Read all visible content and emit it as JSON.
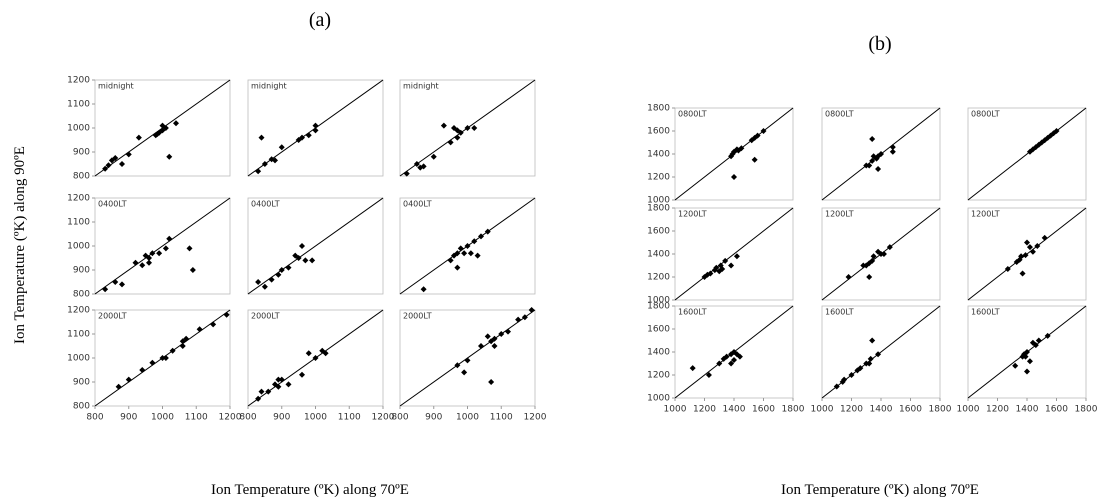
{
  "panels": [
    {
      "label": "(a)",
      "ylabel": "Ion Temperature (ºK) along 90ºE",
      "xlabel": "Ion Temperature (ºK) along 70ºE"
    },
    {
      "label": "(b)",
      "xlabel": "Ion Temperature (ºK) along 70ºE"
    }
  ],
  "chart_data": [
    {
      "type": "scatter",
      "label": "midnight",
      "color": "#000000",
      "identity_line": true,
      "xlim": [
        800,
        1200
      ],
      "ylim": [
        800,
        1200
      ],
      "yticks": [
        800,
        900,
        1000,
        1100,
        1200
      ],
      "x": [
        830,
        840,
        850,
        860,
        880,
        900,
        930,
        980,
        985,
        990,
        1000,
        1000,
        1010,
        1020,
        1040
      ],
      "values": [
        830,
        845,
        865,
        875,
        850,
        890,
        960,
        970,
        975,
        980,
        990,
        1010,
        1000,
        880,
        1020
      ]
    },
    {
      "type": "scatter",
      "label": "midnight",
      "color": "#000000",
      "identity_line": true,
      "xlim": [
        800,
        1200
      ],
      "ylim": [
        800,
        1200
      ],
      "x": [
        830,
        840,
        850,
        870,
        880,
        900,
        950,
        960,
        980,
        1000,
        1000
      ],
      "values": [
        820,
        960,
        850,
        870,
        865,
        920,
        950,
        960,
        970,
        990,
        1010
      ]
    },
    {
      "type": "scatter",
      "label": "midnight",
      "color": "#000000",
      "identity_line": true,
      "xlim": [
        800,
        1200
      ],
      "ylim": [
        800,
        1200
      ],
      "x": [
        820,
        850,
        860,
        870,
        900,
        930,
        950,
        960,
        970,
        970,
        980,
        1000,
        1020
      ],
      "values": [
        810,
        850,
        835,
        840,
        880,
        1010,
        940,
        1000,
        960,
        990,
        980,
        1000,
        1000
      ]
    },
    {
      "type": "scatter",
      "label": "0400LT",
      "color": "#000000",
      "identity_line": true,
      "xlim": [
        800,
        1200
      ],
      "ylim": [
        800,
        1200
      ],
      "yticks": [
        800,
        900,
        1000,
        1100,
        1200
      ],
      "x": [
        830,
        860,
        880,
        920,
        940,
        950,
        960,
        960,
        970,
        990,
        1010,
        1020,
        1080,
        1090
      ],
      "values": [
        820,
        850,
        840,
        930,
        920,
        960,
        950,
        930,
        970,
        970,
        990,
        1030,
        990,
        900
      ]
    },
    {
      "type": "scatter",
      "label": "0400LT",
      "color": "#000000",
      "identity_line": true,
      "xlim": [
        800,
        1200
      ],
      "ylim": [
        800,
        1200
      ],
      "x": [
        830,
        850,
        870,
        890,
        900,
        920,
        940,
        950,
        960,
        970,
        990
      ],
      "values": [
        850,
        830,
        860,
        880,
        900,
        910,
        960,
        950,
        1000,
        940,
        940
      ]
    },
    {
      "type": "scatter",
      "label": "0400LT",
      "color": "#000000",
      "identity_line": true,
      "xlim": [
        800,
        1200
      ],
      "ylim": [
        800,
        1200
      ],
      "x": [
        870,
        950,
        960,
        970,
        970,
        980,
        990,
        1000,
        1010,
        1020,
        1030,
        1040,
        1060
      ],
      "values": [
        820,
        940,
        960,
        970,
        910,
        990,
        970,
        1000,
        970,
        1020,
        960,
        1040,
        1060
      ]
    },
    {
      "type": "scatter",
      "label": "2000LT",
      "color": "#000000",
      "identity_line": true,
      "xlim": [
        800,
        1200
      ],
      "ylim": [
        800,
        1200
      ],
      "yticks": [
        800,
        900,
        1000,
        1100,
        1200
      ],
      "xticks": [
        800,
        900,
        1000,
        1100,
        1200
      ],
      "x": [
        870,
        900,
        940,
        970,
        1000,
        1010,
        1030,
        1060,
        1060,
        1070,
        1110,
        1150,
        1190
      ],
      "values": [
        880,
        910,
        950,
        980,
        1000,
        1000,
        1030,
        1050,
        1070,
        1080,
        1120,
        1140,
        1180
      ]
    },
    {
      "type": "scatter",
      "label": "2000LT",
      "color": "#000000",
      "identity_line": true,
      "xlim": [
        800,
        1200
      ],
      "ylim": [
        800,
        1200
      ],
      "xticks": [
        800,
        900,
        1000,
        1100,
        1200
      ],
      "x": [
        830,
        840,
        860,
        880,
        890,
        890,
        900,
        920,
        960,
        980,
        1000,
        1020,
        1030
      ],
      "values": [
        830,
        860,
        860,
        890,
        880,
        910,
        910,
        890,
        930,
        1020,
        1000,
        1030,
        1020
      ]
    },
    {
      "type": "scatter",
      "label": "2000LT",
      "color": "#000000",
      "identity_line": true,
      "xlim": [
        800,
        1200
      ],
      "ylim": [
        800,
        1200
      ],
      "xticks": [
        800,
        900,
        1000,
        1100,
        1200
      ],
      "x": [
        970,
        990,
        1000,
        1040,
        1060,
        1070,
        1070,
        1080,
        1080,
        1100,
        1120,
        1150,
        1170,
        1190
      ],
      "values": [
        970,
        940,
        990,
        1050,
        1090,
        1070,
        900,
        1050,
        1080,
        1100,
        1110,
        1160,
        1170,
        1200
      ]
    },
    {
      "type": "scatter",
      "label": "0800LT",
      "color": "#000000",
      "identity_line": true,
      "xlim": [
        1000,
        1800
      ],
      "ylim": [
        1000,
        1800
      ],
      "yticks": [
        1000,
        1200,
        1400,
        1600,
        1800
      ],
      "x": [
        1380,
        1390,
        1400,
        1400,
        1420,
        1430,
        1450,
        1520,
        1540,
        1540,
        1560,
        1600
      ],
      "values": [
        1380,
        1400,
        1420,
        1200,
        1440,
        1430,
        1450,
        1520,
        1540,
        1350,
        1560,
        1600
      ]
    },
    {
      "type": "scatter",
      "label": "0800LT",
      "color": "#000000",
      "identity_line": true,
      "xlim": [
        1000,
        1800
      ],
      "ylim": [
        1000,
        1800
      ],
      "x": [
        1300,
        1320,
        1340,
        1340,
        1350,
        1370,
        1380,
        1380,
        1400,
        1480,
        1480
      ],
      "values": [
        1300,
        1300,
        1340,
        1530,
        1380,
        1360,
        1380,
        1270,
        1400,
        1460,
        1420
      ]
    },
    {
      "type": "scatter",
      "label": "0800LT",
      "color": "#000000",
      "identity_line": true,
      "xlim": [
        1000,
        1800
      ],
      "ylim": [
        1000,
        1800
      ],
      "x": [
        1420,
        1440,
        1460,
        1480,
        1500,
        1520,
        1540,
        1560,
        1580,
        1600
      ],
      "values": [
        1420,
        1440,
        1460,
        1480,
        1500,
        1520,
        1540,
        1560,
        1580,
        1600
      ]
    },
    {
      "type": "scatter",
      "label": "1200LT",
      "color": "#000000",
      "identity_line": true,
      "xlim": [
        1000,
        1800
      ],
      "ylim": [
        1000,
        1800
      ],
      "yticks": [
        1000,
        1200,
        1400,
        1600,
        1800
      ],
      "x": [
        1200,
        1220,
        1240,
        1270,
        1280,
        1300,
        1310,
        1320,
        1340,
        1380,
        1420
      ],
      "values": [
        1200,
        1220,
        1230,
        1260,
        1280,
        1250,
        1300,
        1270,
        1340,
        1300,
        1380
      ]
    },
    {
      "type": "scatter",
      "label": "1200LT",
      "color": "#000000",
      "identity_line": true,
      "xlim": [
        1000,
        1800
      ],
      "ylim": [
        1000,
        1800
      ],
      "x": [
        1180,
        1280,
        1300,
        1320,
        1320,
        1340,
        1350,
        1380,
        1400,
        1420,
        1460
      ],
      "values": [
        1200,
        1300,
        1300,
        1320,
        1200,
        1340,
        1380,
        1420,
        1400,
        1400,
        1460
      ]
    },
    {
      "type": "scatter",
      "label": "1200LT",
      "color": "#000000",
      "identity_line": true,
      "xlim": [
        1000,
        1800
      ],
      "ylim": [
        1000,
        1800
      ],
      "x": [
        1270,
        1330,
        1350,
        1360,
        1370,
        1390,
        1400,
        1420,
        1440,
        1470,
        1520
      ],
      "values": [
        1270,
        1330,
        1350,
        1380,
        1230,
        1390,
        1500,
        1460,
        1420,
        1470,
        1540
      ]
    },
    {
      "type": "scatter",
      "label": "1600LT",
      "color": "#000000",
      "identity_line": true,
      "xlim": [
        1000,
        1800
      ],
      "ylim": [
        1000,
        1800
      ],
      "yticks": [
        1000,
        1200,
        1400,
        1600,
        1800
      ],
      "xticks": [
        1000,
        1200,
        1400,
        1600,
        1800
      ],
      "x": [
        1120,
        1230,
        1300,
        1330,
        1350,
        1380,
        1380,
        1400,
        1400,
        1420,
        1440
      ],
      "values": [
        1260,
        1200,
        1300,
        1340,
        1360,
        1380,
        1300,
        1330,
        1400,
        1380,
        1360
      ]
    },
    {
      "type": "scatter",
      "label": "1600LT",
      "color": "#000000",
      "identity_line": true,
      "xlim": [
        1000,
        1800
      ],
      "ylim": [
        1000,
        1800
      ],
      "xticks": [
        1000,
        1200,
        1400,
        1600,
        1800
      ],
      "x": [
        1100,
        1140,
        1150,
        1200,
        1240,
        1260,
        1300,
        1320,
        1330,
        1340,
        1380
      ],
      "values": [
        1100,
        1140,
        1160,
        1200,
        1240,
        1260,
        1300,
        1300,
        1340,
        1500,
        1380
      ]
    },
    {
      "type": "scatter",
      "label": "1600LT",
      "color": "#000000",
      "identity_line": true,
      "xlim": [
        1000,
        1800
      ],
      "ylim": [
        1000,
        1800
      ],
      "xticks": [
        1000,
        1200,
        1400,
        1600,
        1800
      ],
      "x": [
        1320,
        1370,
        1380,
        1390,
        1400,
        1400,
        1420,
        1440,
        1460,
        1480,
        1540
      ],
      "values": [
        1280,
        1360,
        1380,
        1360,
        1400,
        1230,
        1320,
        1480,
        1460,
        1500,
        1540
      ]
    }
  ]
}
